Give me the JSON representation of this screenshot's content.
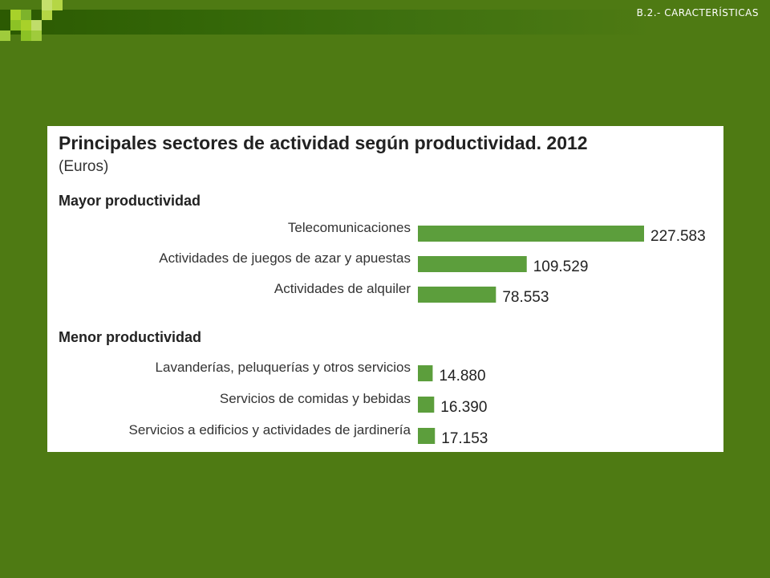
{
  "header": {
    "section_label": "B.2.- CARACTERÍSTICAS"
  },
  "colors": {
    "background": "#4e7a13",
    "bar": "#5c9e3c",
    "panel": "#ffffff"
  },
  "chart_data": {
    "type": "bar",
    "orientation": "horizontal",
    "title": "Principales sectores de actividad según productividad. 2012",
    "subtitle": "(Euros)",
    "groups": [
      {
        "name": "Mayor productividad",
        "categories": [
          "Telecomunicaciones",
          "Actividades de juegos de azar y apuestas",
          "Actividades de alquiler"
        ],
        "values": [
          227583,
          109529,
          78553
        ],
        "value_labels": [
          "227.583",
          "109.529",
          "78.553"
        ]
      },
      {
        "name": "Menor productividad",
        "categories": [
          "Lavanderías, peluquerías y otros servicios",
          "Servicios de comidas y bebidas",
          "Servicios a edificios y actividades de jardinería"
        ],
        "values": [
          14880,
          16390,
          17153
        ],
        "value_labels": [
          "14.880",
          "16.390",
          "17.153"
        ]
      }
    ],
    "xlim": [
      0,
      227583
    ],
    "grid": false,
    "legend": "none"
  }
}
